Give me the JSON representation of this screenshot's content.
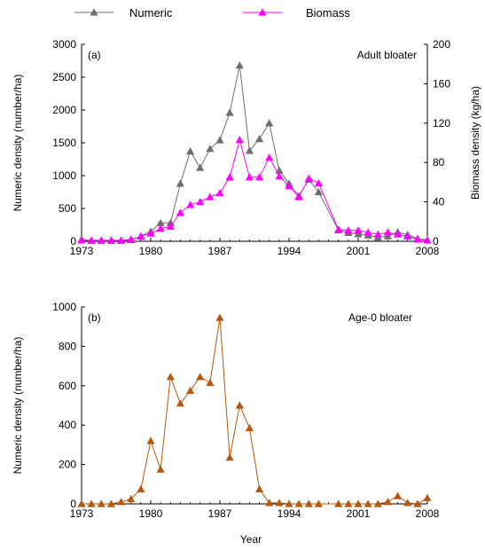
{
  "legend": {
    "numeric_label": "Numeric",
    "biomass_label": "Biomass"
  },
  "shared_xlabel": "Year",
  "colors": {
    "numeric": "#6e6e6e",
    "biomass": "#ff00ff",
    "age0": "#b5590f",
    "axis": "#000000"
  },
  "chart_data": [
    {
      "type": "line",
      "panel_label": "(a)",
      "annotation": "Adult bloater",
      "ylabel": "Numeric density (number/ha)",
      "y2label": "Biomass density (kg/ha)",
      "xlim": [
        1973,
        2008
      ],
      "ylim": [
        0,
        3000
      ],
      "y2lim": [
        0,
        200
      ],
      "xticks": [
        "1973",
        "1980",
        "1987",
        "1994",
        "2001",
        "2008"
      ],
      "yticks": [
        "0",
        "500",
        "1000",
        "1500",
        "2000",
        "2500",
        "3000"
      ],
      "y2ticks": [
        "0",
        "40",
        "80",
        "120",
        "160",
        "200"
      ],
      "x": [
        1973,
        1974,
        1975,
        1976,
        1977,
        1978,
        1979,
        1980,
        1981,
        1982,
        1983,
        1984,
        1985,
        1986,
        1987,
        1988,
        1989,
        1990,
        1991,
        1992,
        1993,
        1994,
        1995,
        1996,
        1997,
        1999,
        2000,
        2001,
        2002,
        2003,
        2004,
        2005,
        2006,
        2007,
        2008
      ],
      "series": [
        {
          "name": "Numeric",
          "axis": "left",
          "values": [
            30,
            10,
            10,
            10,
            10,
            20,
            80,
            150,
            280,
            280,
            880,
            1370,
            1120,
            1410,
            1540,
            1960,
            2680,
            1380,
            1560,
            1800,
            1080,
            880,
            690,
            940,
            750,
            170,
            130,
            110,
            90,
            60,
            80,
            140,
            100,
            40,
            20
          ]
        },
        {
          "name": "Biomass",
          "axis": "right",
          "values": [
            1,
            1,
            1,
            1,
            1,
            2,
            5,
            8,
            13,
            15,
            29,
            37,
            40,
            45,
            49,
            65,
            103,
            65,
            65,
            85,
            66,
            56,
            45,
            64,
            59,
            12,
            11,
            11,
            9,
            7,
            9,
            7,
            5,
            2,
            1
          ]
        }
      ]
    },
    {
      "type": "line",
      "panel_label": "(b)",
      "annotation": "Age-0 bloater",
      "ylabel": "Numeric density (number/ha)",
      "xlim": [
        1973,
        2008
      ],
      "ylim": [
        0,
        1000
      ],
      "xticks": [
        "1973",
        "1980",
        "1987",
        "1994",
        "2001",
        "2008"
      ],
      "yticks": [
        "0",
        "200",
        "400",
        "600",
        "800",
        "1000"
      ],
      "x": [
        1973,
        1974,
        1975,
        1976,
        1977,
        1978,
        1979,
        1980,
        1981,
        1982,
        1983,
        1984,
        1985,
        1986,
        1987,
        1988,
        1989,
        1990,
        1991,
        1992,
        1993,
        1994,
        1995,
        1996,
        1997,
        1999,
        2000,
        2001,
        2002,
        2003,
        2004,
        2005,
        2006,
        2007,
        2008
      ],
      "series": [
        {
          "values": [
            0,
            0,
            0,
            0,
            10,
            25,
            75,
            320,
            175,
            645,
            510,
            575,
            645,
            615,
            945,
            235,
            500,
            385,
            75,
            5,
            5,
            0,
            0,
            0,
            0,
            0,
            0,
            0,
            0,
            0,
            10,
            40,
            5,
            0,
            30
          ]
        }
      ]
    }
  ]
}
